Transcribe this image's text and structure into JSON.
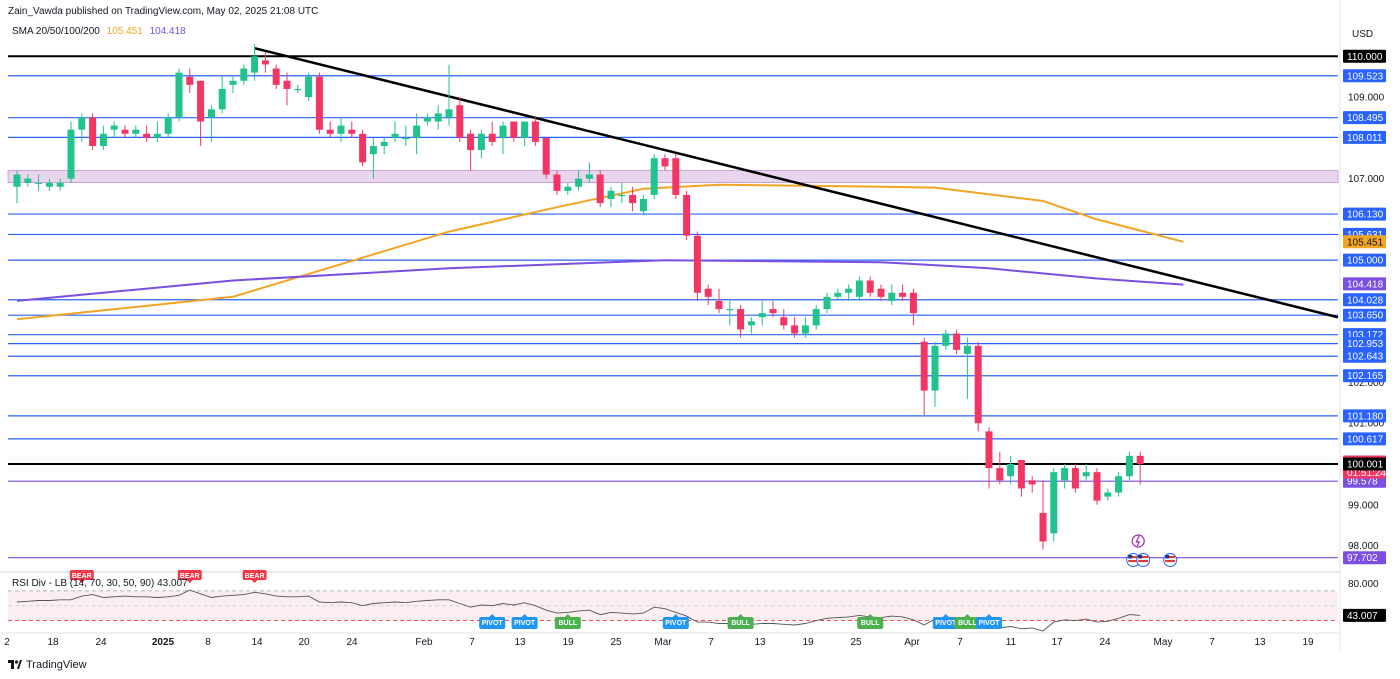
{
  "header": {
    "publisher": "Zain_Vawda published on TradingView.com, May 02, 2025 21:08 UTC"
  },
  "legend": {
    "sma_label": "SMA 20/50/100/200",
    "sma_value_1": "105.451",
    "sma_value_2": "104.418"
  },
  "axis": {
    "currency": "USD"
  },
  "rsi_legend": {
    "label": "RSI Div - LB (14, 70, 30, 50, 90)",
    "value": "43.007"
  },
  "brand": {
    "name": "TradingView"
  },
  "colors": {
    "up": "#22c28e",
    "down": "#f23664",
    "blue_line": "#2962ff",
    "purple_line": "#7b4fe0",
    "sma_orange": "#f2a524",
    "sma_purple": "#7b4fe0",
    "zone": "#e9d5ee",
    "trendline": "#000000",
    "pivot": "#2196f3",
    "bull": "#4caf50",
    "bear": "#f23645"
  },
  "chart_data": {
    "type": "candlestick",
    "symbol_timeframe": "daily",
    "y_range": [
      97.4,
      110.4
    ],
    "x_tick_labels": [
      "2",
      "18",
      "24",
      "2025",
      "8",
      "14",
      "20",
      "24",
      "Feb",
      "7",
      "13",
      "19",
      "25",
      "Mar",
      "7",
      "13",
      "19",
      "25",
      "Apr",
      "7",
      "11",
      "17",
      "24",
      "May",
      "7",
      "13",
      "19"
    ],
    "price_axis_ticks": [
      "109.000",
      "107.000",
      "102.000",
      "101.000",
      "99.000",
      "98.000"
    ],
    "candles": [
      {
        "o": 106.8,
        "h": 107.2,
        "l": 106.4,
        "c": 107.1
      },
      {
        "o": 106.9,
        "h": 107.1,
        "l": 106.8,
        "c": 107.0
      },
      {
        "o": 106.9,
        "h": 107.1,
        "l": 106.7,
        "c": 106.9
      },
      {
        "o": 106.8,
        "h": 107.0,
        "l": 106.7,
        "c": 106.9
      },
      {
        "o": 106.8,
        "h": 107.0,
        "l": 106.7,
        "c": 106.9
      },
      {
        "o": 107.0,
        "h": 108.4,
        "l": 106.9,
        "c": 108.2
      },
      {
        "o": 108.2,
        "h": 108.6,
        "l": 107.9,
        "c": 108.5
      },
      {
        "o": 108.5,
        "h": 108.6,
        "l": 107.7,
        "c": 107.8
      },
      {
        "o": 107.8,
        "h": 108.3,
        "l": 107.7,
        "c": 108.1
      },
      {
        "o": 108.2,
        "h": 108.4,
        "l": 108.0,
        "c": 108.3
      },
      {
        "o": 108.2,
        "h": 108.3,
        "l": 108.0,
        "c": 108.1
      },
      {
        "o": 108.1,
        "h": 108.3,
        "l": 108.0,
        "c": 108.2
      },
      {
        "o": 108.1,
        "h": 108.3,
        "l": 107.9,
        "c": 108.0
      },
      {
        "o": 108.0,
        "h": 108.4,
        "l": 107.9,
        "c": 108.1
      },
      {
        "o": 108.1,
        "h": 108.6,
        "l": 108.0,
        "c": 108.5
      },
      {
        "o": 108.5,
        "h": 109.7,
        "l": 108.4,
        "c": 109.6
      },
      {
        "o": 109.5,
        "h": 109.7,
        "l": 109.1,
        "c": 109.3
      },
      {
        "o": 109.4,
        "h": 109.4,
        "l": 107.8,
        "c": 108.4
      },
      {
        "o": 108.5,
        "h": 108.8,
        "l": 107.9,
        "c": 108.7
      },
      {
        "o": 108.7,
        "h": 109.5,
        "l": 108.6,
        "c": 109.2
      },
      {
        "o": 109.3,
        "h": 109.5,
        "l": 109.1,
        "c": 109.4
      },
      {
        "o": 109.4,
        "h": 109.8,
        "l": 109.3,
        "c": 109.7
      },
      {
        "o": 109.6,
        "h": 110.3,
        "l": 109.4,
        "c": 110.0
      },
      {
        "o": 109.9,
        "h": 110.1,
        "l": 109.6,
        "c": 109.8
      },
      {
        "o": 109.7,
        "h": 109.8,
        "l": 109.2,
        "c": 109.3
      },
      {
        "o": 109.4,
        "h": 109.6,
        "l": 108.8,
        "c": 109.2
      },
      {
        "o": 109.2,
        "h": 109.3,
        "l": 109.1,
        "c": 109.2
      },
      {
        "o": 109.0,
        "h": 109.6,
        "l": 108.9,
        "c": 109.5
      },
      {
        "o": 109.5,
        "h": 109.6,
        "l": 108.1,
        "c": 108.2
      },
      {
        "o": 108.2,
        "h": 108.4,
        "l": 108.0,
        "c": 108.1
      },
      {
        "o": 108.1,
        "h": 108.5,
        "l": 107.9,
        "c": 108.3
      },
      {
        "o": 108.2,
        "h": 108.4,
        "l": 108.0,
        "c": 108.1
      },
      {
        "o": 108.1,
        "h": 108.2,
        "l": 107.3,
        "c": 107.4
      },
      {
        "o": 107.6,
        "h": 108.0,
        "l": 107.0,
        "c": 107.8
      },
      {
        "o": 107.8,
        "h": 108.0,
        "l": 107.6,
        "c": 107.9
      },
      {
        "o": 108.0,
        "h": 108.4,
        "l": 107.9,
        "c": 108.1
      },
      {
        "o": 108.0,
        "h": 108.3,
        "l": 107.8,
        "c": 108.0
      },
      {
        "o": 108.0,
        "h": 108.6,
        "l": 107.6,
        "c": 108.3
      },
      {
        "o": 108.4,
        "h": 108.6,
        "l": 108.3,
        "c": 108.5
      },
      {
        "o": 108.4,
        "h": 108.8,
        "l": 108.2,
        "c": 108.6
      },
      {
        "o": 108.5,
        "h": 109.8,
        "l": 108.3,
        "c": 108.7
      },
      {
        "o": 108.8,
        "h": 109.0,
        "l": 107.9,
        "c": 108.0
      },
      {
        "o": 108.1,
        "h": 108.2,
        "l": 107.2,
        "c": 107.7
      },
      {
        "o": 107.7,
        "h": 108.2,
        "l": 107.5,
        "c": 108.1
      },
      {
        "o": 108.1,
        "h": 108.4,
        "l": 107.8,
        "c": 107.9
      },
      {
        "o": 108.0,
        "h": 108.4,
        "l": 107.6,
        "c": 108.3
      },
      {
        "o": 108.4,
        "h": 108.4,
        "l": 107.9,
        "c": 108.0
      },
      {
        "o": 108.0,
        "h": 108.4,
        "l": 107.8,
        "c": 108.4
      },
      {
        "o": 108.4,
        "h": 108.5,
        "l": 107.8,
        "c": 107.9
      },
      {
        "o": 108.0,
        "h": 108.0,
        "l": 107.0,
        "c": 107.1
      },
      {
        "o": 107.1,
        "h": 107.2,
        "l": 106.6,
        "c": 106.7
      },
      {
        "o": 106.7,
        "h": 106.9,
        "l": 106.6,
        "c": 106.8
      },
      {
        "o": 106.8,
        "h": 107.2,
        "l": 106.7,
        "c": 107.0
      },
      {
        "o": 107.0,
        "h": 107.4,
        "l": 106.9,
        "c": 107.1
      },
      {
        "o": 107.1,
        "h": 107.2,
        "l": 106.3,
        "c": 106.4
      },
      {
        "o": 106.5,
        "h": 106.8,
        "l": 106.3,
        "c": 106.7
      },
      {
        "o": 106.6,
        "h": 106.9,
        "l": 106.4,
        "c": 106.6
      },
      {
        "o": 106.6,
        "h": 106.8,
        "l": 106.2,
        "c": 106.4
      },
      {
        "o": 106.2,
        "h": 106.6,
        "l": 106.1,
        "c": 106.5
      },
      {
        "o": 106.6,
        "h": 107.6,
        "l": 106.5,
        "c": 107.5
      },
      {
        "o": 107.5,
        "h": 107.6,
        "l": 107.2,
        "c": 107.3
      },
      {
        "o": 107.5,
        "h": 107.6,
        "l": 106.5,
        "c": 106.6
      },
      {
        "o": 106.6,
        "h": 106.7,
        "l": 105.5,
        "c": 105.6
      },
      {
        "o": 105.6,
        "h": 105.7,
        "l": 104.0,
        "c": 104.2
      },
      {
        "o": 104.3,
        "h": 104.4,
        "l": 103.9,
        "c": 104.1
      },
      {
        "o": 104.0,
        "h": 104.3,
        "l": 103.7,
        "c": 103.8
      },
      {
        "o": 103.8,
        "h": 104.0,
        "l": 103.4,
        "c": 103.8
      },
      {
        "o": 103.8,
        "h": 103.9,
        "l": 103.1,
        "c": 103.3
      },
      {
        "o": 103.4,
        "h": 103.6,
        "l": 103.2,
        "c": 103.5
      },
      {
        "o": 103.6,
        "h": 104.0,
        "l": 103.4,
        "c": 103.7
      },
      {
        "o": 103.8,
        "h": 104.0,
        "l": 103.6,
        "c": 103.7
      },
      {
        "o": 103.6,
        "h": 103.8,
        "l": 103.3,
        "c": 103.4
      },
      {
        "o": 103.4,
        "h": 103.6,
        "l": 103.1,
        "c": 103.2
      },
      {
        "o": 103.2,
        "h": 103.6,
        "l": 103.1,
        "c": 103.4
      },
      {
        "o": 103.4,
        "h": 103.9,
        "l": 103.3,
        "c": 103.8
      },
      {
        "o": 103.8,
        "h": 104.2,
        "l": 103.7,
        "c": 104.1
      },
      {
        "o": 104.1,
        "h": 104.3,
        "l": 104.0,
        "c": 104.2
      },
      {
        "o": 104.2,
        "h": 104.4,
        "l": 104.0,
        "c": 104.3
      },
      {
        "o": 104.1,
        "h": 104.6,
        "l": 104.0,
        "c": 104.5
      },
      {
        "o": 104.5,
        "h": 104.6,
        "l": 104.1,
        "c": 104.2
      },
      {
        "o": 104.3,
        "h": 104.4,
        "l": 104.0,
        "c": 104.1
      },
      {
        "o": 104.0,
        "h": 104.4,
        "l": 103.9,
        "c": 104.2
      },
      {
        "o": 104.2,
        "h": 104.4,
        "l": 104.0,
        "c": 104.1
      },
      {
        "o": 104.2,
        "h": 104.3,
        "l": 103.4,
        "c": 103.7
      },
      {
        "o": 103.0,
        "h": 103.1,
        "l": 101.2,
        "c": 101.8
      },
      {
        "o": 101.8,
        "h": 103.0,
        "l": 101.4,
        "c": 102.9
      },
      {
        "o": 102.9,
        "h": 103.3,
        "l": 102.8,
        "c": 103.2
      },
      {
        "o": 103.2,
        "h": 103.3,
        "l": 102.7,
        "c": 102.8
      },
      {
        "o": 102.7,
        "h": 103.1,
        "l": 101.6,
        "c": 102.9
      },
      {
        "o": 102.9,
        "h": 103.0,
        "l": 100.8,
        "c": 101.0
      },
      {
        "o": 100.8,
        "h": 100.9,
        "l": 99.4,
        "c": 99.9
      },
      {
        "o": 99.9,
        "h": 100.3,
        "l": 99.5,
        "c": 99.6
      },
      {
        "o": 99.7,
        "h": 100.2,
        "l": 99.5,
        "c": 100.0
      },
      {
        "o": 100.1,
        "h": 100.1,
        "l": 99.2,
        "c": 99.4
      },
      {
        "o": 99.6,
        "h": 99.7,
        "l": 99.3,
        "c": 99.5
      },
      {
        "o": 98.8,
        "h": 99.6,
        "l": 97.9,
        "c": 98.1
      },
      {
        "o": 98.3,
        "h": 99.9,
        "l": 98.1,
        "c": 99.8
      },
      {
        "o": 99.6,
        "h": 100.0,
        "l": 99.4,
        "c": 99.9
      },
      {
        "o": 99.9,
        "h": 100.0,
        "l": 99.3,
        "c": 99.4
      },
      {
        "o": 99.7,
        "h": 100.0,
        "l": 99.6,
        "c": 99.8
      },
      {
        "o": 99.8,
        "h": 99.9,
        "l": 99.0,
        "c": 99.1
      },
      {
        "o": 99.2,
        "h": 99.4,
        "l": 99.1,
        "c": 99.3
      },
      {
        "o": 99.3,
        "h": 99.8,
        "l": 99.2,
        "c": 99.7
      },
      {
        "o": 99.7,
        "h": 100.3,
        "l": 99.6,
        "c": 100.2
      },
      {
        "o": 100.2,
        "h": 100.3,
        "l": 99.5,
        "c": 100.0
      }
    ],
    "horizontal_levels": [
      {
        "price": 110.0,
        "label": "110.000",
        "line_color": "#000000",
        "tag_bg": "#000000",
        "tag_fg": "#ffffff"
      },
      {
        "price": 109.523,
        "label": "109.523",
        "line_color": "#2962ff",
        "tag_bg": "#2962ff",
        "tag_fg": "#ffffff"
      },
      {
        "price": 108.495,
        "label": "108.495",
        "line_color": "#2962ff",
        "tag_bg": "#2962ff",
        "tag_fg": "#ffffff"
      },
      {
        "price": 108.011,
        "label": "108.011",
        "line_color": "#2962ff",
        "tag_bg": "#2962ff",
        "tag_fg": "#ffffff"
      },
      {
        "price": 106.13,
        "label": "106.130",
        "line_color": "#2962ff",
        "tag_bg": "#2962ff",
        "tag_fg": "#ffffff"
      },
      {
        "price": 105.631,
        "label": "105.631",
        "line_color": "#2962ff",
        "tag_bg": "#2962ff",
        "tag_fg": "#ffffff"
      },
      {
        "price": 105.0,
        "label": "105.000",
        "line_color": "#2962ff",
        "tag_bg": "#2962ff",
        "tag_fg": "#ffffff"
      },
      {
        "price": 104.028,
        "label": "104.028",
        "line_color": "#2962ff",
        "tag_bg": "#2962ff",
        "tag_fg": "#ffffff"
      },
      {
        "price": 103.65,
        "label": "103.650",
        "line_color": "#2962ff",
        "tag_bg": "#2962ff",
        "tag_fg": "#ffffff"
      },
      {
        "price": 103.172,
        "label": "103.172",
        "line_color": "#2962ff",
        "tag_bg": "#2962ff",
        "tag_fg": "#ffffff"
      },
      {
        "price": 102.953,
        "label": "102.953",
        "line_color": "#2962ff",
        "tag_bg": "#2962ff",
        "tag_fg": "#ffffff"
      },
      {
        "price": 102.643,
        "label": "102.643",
        "line_color": "#2962ff",
        "tag_bg": "#2962ff",
        "tag_fg": "#ffffff"
      },
      {
        "price": 102.165,
        "label": "102.165",
        "line_color": "#2962ff",
        "tag_bg": "#2962ff",
        "tag_fg": "#ffffff"
      },
      {
        "price": 101.18,
        "label": "101.180",
        "line_color": "#2962ff",
        "tag_bg": "#2962ff",
        "tag_fg": "#ffffff"
      },
      {
        "price": 100.617,
        "label": "100.617",
        "line_color": "#2962ff",
        "tag_bg": "#2962ff",
        "tag_fg": "#ffffff"
      },
      {
        "price": 100.001,
        "label": "100.001",
        "line_color": "#000000",
        "tag_bg": "#000000",
        "tag_fg": "#ffffff"
      },
      {
        "price": 99.578,
        "label": "99.578",
        "line_color": "#7b4fe0",
        "tag_bg": "#7b4fe0",
        "tag_fg": "#ffffff"
      },
      {
        "price": 97.702,
        "label": "97.702",
        "line_color": "#7b4fe0",
        "tag_bg": "#7b4fe0",
        "tag_fg": "#ffffff"
      }
    ],
    "sma_tags": [
      {
        "price": 105.451,
        "label": "105.451",
        "bg": "#f2a524",
        "fg": "#131722"
      },
      {
        "price": 104.418,
        "label": "104.418",
        "bg": "#7b4fe0",
        "fg": "#ffffff"
      }
    ],
    "last_price": {
      "price": 100.036,
      "label": "100.036",
      "countdown": "01:51:24",
      "bg": "#f23664",
      "fg": "#ffffff"
    },
    "zone": {
      "top": 107.2,
      "bottom": 106.9
    },
    "trendline": {
      "start_bar": 22,
      "start_price": 110.2,
      "end_bar": 124,
      "end_price": 103.6
    },
    "sma_orange": [
      {
        "bar": 0,
        "price": 103.55
      },
      {
        "bar": 20,
        "price": 104.1
      },
      {
        "bar": 30,
        "price": 104.9
      },
      {
        "bar": 40,
        "price": 105.7
      },
      {
        "bar": 50,
        "price": 106.3
      },
      {
        "bar": 58,
        "price": 106.75
      },
      {
        "bar": 65,
        "price": 106.85
      },
      {
        "bar": 75,
        "price": 106.82
      },
      {
        "bar": 85,
        "price": 106.78
      },
      {
        "bar": 95,
        "price": 106.45
      },
      {
        "bar": 100,
        "price": 106.0
      },
      {
        "bar": 108,
        "price": 105.45
      }
    ],
    "sma_purple": [
      {
        "bar": 0,
        "price": 104.0
      },
      {
        "bar": 20,
        "price": 104.5
      },
      {
        "bar": 40,
        "price": 104.8
      },
      {
        "bar": 60,
        "price": 105.0
      },
      {
        "bar": 80,
        "price": 104.95
      },
      {
        "bar": 90,
        "price": 104.8
      },
      {
        "bar": 100,
        "price": 104.55
      },
      {
        "bar": 108,
        "price": 104.4
      }
    ],
    "rsi": {
      "ticks": [
        "80.000"
      ],
      "value_label": "43.007",
      "levels": {
        "upper": 70,
        "middle": 50,
        "lower": 30
      },
      "range": [
        20,
        90
      ],
      "series": [
        55,
        56,
        57,
        57,
        58,
        58,
        63,
        65,
        61,
        62,
        63,
        62,
        62,
        61,
        62,
        64,
        71,
        66,
        61,
        63,
        64,
        65,
        68,
        66,
        63,
        62,
        62,
        63,
        55,
        54,
        55,
        54,
        50,
        53,
        54,
        55,
        54,
        56,
        57,
        58,
        58,
        53,
        48,
        51,
        50,
        53,
        51,
        54,
        50,
        44,
        40,
        41,
        43,
        44,
        38,
        41,
        40,
        39,
        40,
        48,
        46,
        41,
        36,
        28,
        28,
        26,
        26,
        24,
        25,
        26,
        26,
        25,
        24,
        26,
        30,
        33,
        34,
        35,
        37,
        35,
        34,
        36,
        35,
        31,
        24,
        32,
        35,
        33,
        34,
        25,
        20,
        20,
        22,
        19,
        20,
        16,
        28,
        31,
        30,
        32,
        28,
        29,
        33,
        38,
        37
      ],
      "badges": [
        {
          "bar": 6,
          "label": "BEAR",
          "type": "bear"
        },
        {
          "bar": 16,
          "label": "BEAR",
          "type": "bear"
        },
        {
          "bar": 22,
          "label": "BEAR",
          "type": "bear"
        },
        {
          "bar": 44,
          "label": "PIVOT",
          "type": "pivot"
        },
        {
          "bar": 47,
          "label": "PIVOT",
          "type": "pivot"
        },
        {
          "bar": 51,
          "label": "BULL",
          "type": "bull"
        },
        {
          "bar": 61,
          "label": "PIVOT",
          "type": "pivot"
        },
        {
          "bar": 67,
          "label": "BULL",
          "type": "bull"
        },
        {
          "bar": 79,
          "label": "BULL",
          "type": "bull"
        },
        {
          "bar": 86,
          "label": "PIVOT",
          "type": "pivot"
        },
        {
          "bar": 88,
          "label": "BULL",
          "type": "bull"
        },
        {
          "bar": 90,
          "label": "PIVOT",
          "type": "pivot"
        }
      ]
    }
  }
}
